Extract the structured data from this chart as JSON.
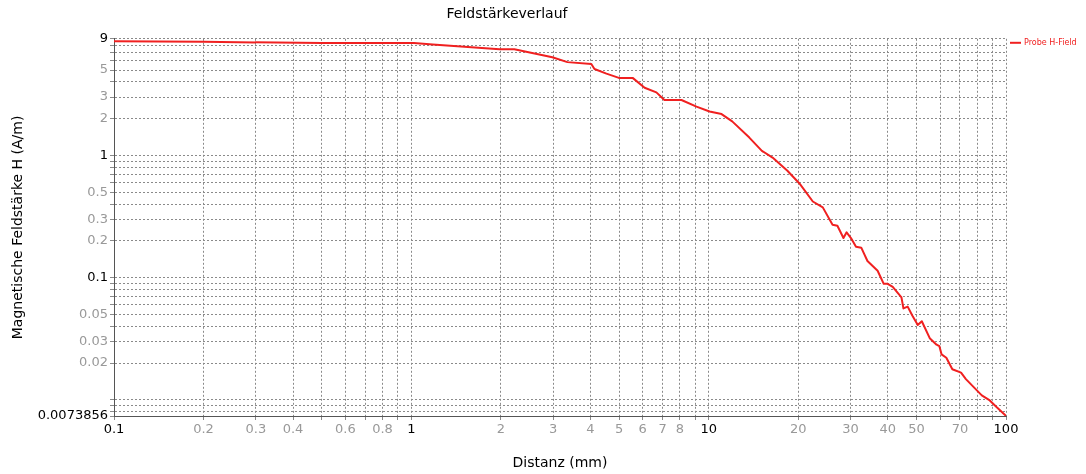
{
  "chart_data": {
    "type": "line",
    "title": "Feldstärkeverlauf",
    "xlabel": "Distanz (mm)",
    "ylabel": "Magnetische Feldstärke H (A/m)",
    "log": "xy",
    "grid": true,
    "legend": "top right",
    "marker": "none",
    "line_style": "solid",
    "xlim": [
      0.1,
      100
    ],
    "ylim": [
      0.0073856,
      9
    ],
    "xticks": [
      0.1,
      0.2,
      0.3,
      0.4,
      {
        "value": 0.5,
        "label": null
      },
      0.6,
      {
        "value": 0.7,
        "label": null
      },
      0.8,
      {
        "value": 0.9,
        "label": null
      },
      1,
      2,
      3,
      4,
      5,
      6,
      7,
      8,
      {
        "value": 9,
        "label": null
      },
      10,
      20,
      30,
      40,
      50,
      {
        "value": 60,
        "label": null
      },
      70,
      {
        "value": 80,
        "label": null
      },
      {
        "value": 90,
        "label": null
      },
      100
    ],
    "yticks": [
      0.0073856,
      {
        "value": 0.008,
        "label": null
      },
      {
        "value": 0.009,
        "label": null
      },
      {
        "value": 0.01,
        "label": null
      },
      0.02,
      0.03,
      {
        "value": 0.04,
        "label": null
      },
      0.05,
      {
        "value": 0.06,
        "label": null
      },
      {
        "value": 0.07,
        "label": null
      },
      {
        "value": 0.08,
        "label": null
      },
      {
        "value": 0.09,
        "label": null
      },
      0.1,
      0.2,
      0.3,
      {
        "value": 0.4,
        "label": null
      },
      0.5,
      {
        "value": 0.6,
        "label": null
      },
      {
        "value": 0.7,
        "label": null
      },
      {
        "value": 0.8,
        "label": null
      },
      {
        "value": 0.9,
        "label": null
      },
      1,
      2,
      3,
      {
        "value": 4,
        "label": null
      },
      5,
      {
        "value": 6,
        "label": null
      },
      {
        "value": 7,
        "label": null
      },
      {
        "value": 8,
        "label": null
      },
      9
    ],
    "series": [
      {
        "name": "Probe H-Field",
        "color": "#f02020",
        "x": [
          0.1,
          0.2,
          0.5,
          1.02,
          1.18,
          1.98,
          2.22,
          2.98,
          3.35,
          4.03,
          4.13,
          4.53,
          4.99,
          5.55,
          6.09,
          6.67,
          7.1,
          8.1,
          9.1,
          10.07,
          11.05,
          12.0,
          13.7,
          15.1,
          16.4,
          18.4,
          20.2,
          22.4,
          24.2,
          26.1,
          27.1,
          28.4,
          29.1,
          30.1,
          31.3,
          32.6,
          34.2,
          37.0,
          38.8,
          40.0,
          41.6,
          44.5,
          45.2,
          46.7,
          48.4,
          50.5,
          52.1,
          55.4,
          58.4,
          59.7,
          60.7,
          63.0,
          66.0,
          70.6,
          73.3,
          77.0,
          82.9,
          88.2,
          93.1,
          100
        ],
        "values": [
          8.6,
          8.5,
          8.3,
          8.3,
          8.07,
          7.4,
          7.4,
          6.36,
          5.8,
          5.6,
          5.1,
          4.67,
          4.31,
          4.31,
          3.58,
          3.28,
          2.84,
          2.84,
          2.51,
          2.29,
          2.18,
          1.9,
          1.4,
          1.09,
          0.96,
          0.75,
          0.59,
          0.42,
          0.376,
          0.271,
          0.266,
          0.211,
          0.235,
          0.211,
          0.179,
          0.176,
          0.137,
          0.114,
          0.089,
          0.089,
          0.084,
          0.069,
          0.056,
          0.058,
          0.049,
          0.041,
          0.044,
          0.032,
          0.0283,
          0.0275,
          0.0236,
          0.0221,
          0.0178,
          0.0167,
          0.0148,
          0.0131,
          0.0109,
          0.0099,
          0.0087,
          0.0074
        ]
      }
    ]
  }
}
